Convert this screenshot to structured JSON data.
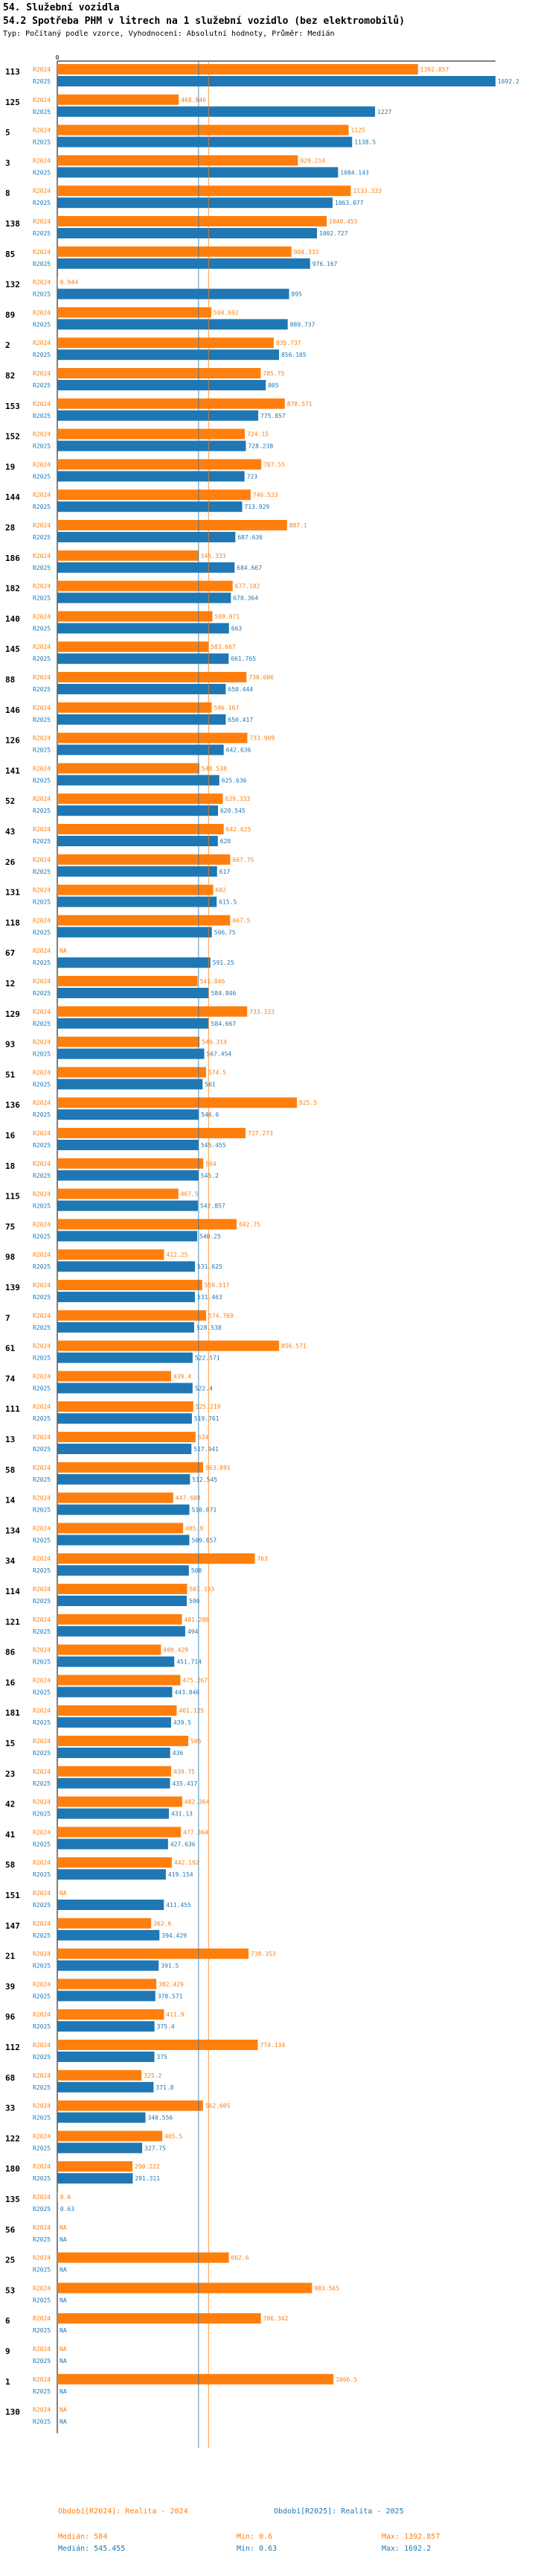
{
  "header": {
    "title": "54. Služební vozidla",
    "subtitle": "54.2 Spotřeba PHM v litrech na 1 služební vozidlo (bez elektromobilů)",
    "meta": "Typ: Počítaný podle vzorce, Vyhodnocení: Absolutní hodnoty, Průměr: Medián"
  },
  "colors": {
    "r2024": "#ff7f0e",
    "r2025": "#1f77b4",
    "median": "#888888"
  },
  "chart_data": {
    "type": "bar",
    "orientation": "horizontal",
    "title": "54.2 Spotřeba PHM v litrech na 1 služební vozidlo (bez elektromobilů)",
    "axis_min_label": "0",
    "xlim": [
      0,
      1692.2
    ],
    "series_names": [
      "R2024",
      "R2025"
    ],
    "medians": {
      "R2024": 584,
      "R2025": 545.455
    },
    "categories": [
      {
        "id": "113",
        "v2024": 1392.857,
        "l2024": "1392.857",
        "v2025": 1692.2,
        "l2025": "1692.2"
      },
      {
        "id": "125",
        "v2024": 468.846,
        "l2024": "468.846",
        "v2025": 1227,
        "l2025": "1227"
      },
      {
        "id": "5",
        "v2024": 1125,
        "l2024": "1125",
        "v2025": 1138.5,
        "l2025": "1138.5"
      },
      {
        "id": "3",
        "v2024": 929.214,
        "l2024": "929.214",
        "v2025": 1084.143,
        "l2025": "1084.143"
      },
      {
        "id": "8",
        "v2024": 1133.333,
        "l2024": "1133.333",
        "v2025": 1063.077,
        "l2025": "1063.077"
      },
      {
        "id": "138",
        "v2024": 1040.455,
        "l2024": "1040.455",
        "v2025": 1002.727,
        "l2025": "1002.727"
      },
      {
        "id": "85",
        "v2024": 904.333,
        "l2024": "904.333",
        "v2025": 976.167,
        "l2025": "976.167"
      },
      {
        "id": "132",
        "v2024": 0.944,
        "l2024": "0.944",
        "v2025": 895,
        "l2025": "895"
      },
      {
        "id": "89",
        "v2024": 594.692,
        "l2024": "594.692",
        "v2025": 889.737,
        "l2025": "889.737"
      },
      {
        "id": "2",
        "v2024": 835.737,
        "l2024": "835.737",
        "v2025": 856.105,
        "l2025": "856.105"
      },
      {
        "id": "82",
        "v2024": 785.75,
        "l2024": "785.75",
        "v2025": 805,
        "l2025": "805"
      },
      {
        "id": "153",
        "v2024": 878.571,
        "l2024": "878.571",
        "v2025": 775.857,
        "l2025": "775.857"
      },
      {
        "id": "152",
        "v2024": 724.15,
        "l2024": "724.15",
        "v2025": 728.238,
        "l2025": "728.238"
      },
      {
        "id": "19",
        "v2024": 787.55,
        "l2024": "787.55",
        "v2025": 723,
        "l2025": "723"
      },
      {
        "id": "144",
        "v2024": 746.533,
        "l2024": "746.533",
        "v2025": 713.929,
        "l2025": "713.929"
      },
      {
        "id": "28",
        "v2024": 887.1,
        "l2024": "887.1",
        "v2025": 687.636,
        "l2025": "687.636"
      },
      {
        "id": "186",
        "v2024": 545.333,
        "l2024": "545.333",
        "v2025": 684.667,
        "l2025": "684.667"
      },
      {
        "id": "182",
        "v2024": 677.182,
        "l2024": "677.182",
        "v2025": 670.364,
        "l2025": "670.364"
      },
      {
        "id": "140",
        "v2024": 599.071,
        "l2024": "599.071",
        "v2025": 663,
        "l2025": "663"
      },
      {
        "id": "145",
        "v2024": 583.667,
        "l2024": "583.667",
        "v2025": 661.765,
        "l2025": "661.765"
      },
      {
        "id": "88",
        "v2024": 730.606,
        "l2024": "730.606",
        "v2025": 650.444,
        "l2025": "650.444"
      },
      {
        "id": "146",
        "v2024": 596.167,
        "l2024": "596.167",
        "v2025": 650.417,
        "l2025": "650.417"
      },
      {
        "id": "126",
        "v2024": 733.909,
        "l2024": "733.909",
        "v2025": 642.636,
        "l2025": "642.636"
      },
      {
        "id": "141",
        "v2024": 548.538,
        "l2024": "548.538",
        "v2025": 625.636,
        "l2025": "625.636"
      },
      {
        "id": "52",
        "v2024": 639.333,
        "l2024": "639.333",
        "v2025": 620.545,
        "l2025": "620.545"
      },
      {
        "id": "43",
        "v2024": 642.625,
        "l2024": "642.625",
        "v2025": 620,
        "l2025": "620"
      },
      {
        "id": "26",
        "v2024": 667.75,
        "l2024": "667.75",
        "v2025": 617,
        "l2025": "617"
      },
      {
        "id": "131",
        "v2024": 602,
        "l2024": "602",
        "v2025": 615.5,
        "l2025": "615.5"
      },
      {
        "id": "118",
        "v2024": 667.5,
        "l2024": "667.5",
        "v2025": 596.75,
        "l2025": "596.75"
      },
      {
        "id": "67",
        "v2024": null,
        "l2024": "NA",
        "v2025": 591.25,
        "l2025": "591.25"
      },
      {
        "id": "12",
        "v2024": 541.846,
        "l2024": "541.846",
        "v2025": 584.846,
        "l2025": "584.846"
      },
      {
        "id": "129",
        "v2024": 733.333,
        "l2024": "733.333",
        "v2025": 584.667,
        "l2025": "584.667"
      },
      {
        "id": "93",
        "v2024": 549.314,
        "l2024": "549.314",
        "v2025": 567.454,
        "l2025": "567.454"
      },
      {
        "id": "51",
        "v2024": 574.5,
        "l2024": "574.5",
        "v2025": 561,
        "l2025": "561"
      },
      {
        "id": "136",
        "v2024": 925.5,
        "l2024": "925.5",
        "v2025": 546.6,
        "l2025": "546.6"
      },
      {
        "id": "16",
        "v2024": 727.273,
        "l2024": "727.273",
        "v2025": 545.455,
        "l2025": "545.455"
      },
      {
        "id": "18",
        "v2024": 564,
        "l2024": "564",
        "v2025": 545.2,
        "l2025": "545.2"
      },
      {
        "id": "115",
        "v2024": 467.5,
        "l2024": "467.5",
        "v2025": 542.857,
        "l2025": "542.857"
      },
      {
        "id": "75",
        "v2024": 692.75,
        "l2024": "692.75",
        "v2025": 540.25,
        "l2025": "540.25"
      },
      {
        "id": "98",
        "v2024": 412.25,
        "l2024": "412.25",
        "v2025": 531.625,
        "l2025": "531.625"
      },
      {
        "id": "139",
        "v2024": 559.517,
        "l2024": "559.517",
        "v2025": 531.463,
        "l2025": "531.463"
      },
      {
        "id": "7",
        "v2024": 574.769,
        "l2024": "574.769",
        "v2025": 528.538,
        "l2025": "528.538"
      },
      {
        "id": "61",
        "v2024": 856.571,
        "l2024": "856.571",
        "v2025": 522.571,
        "l2025": "522.571"
      },
      {
        "id": "74",
        "v2024": 439.4,
        "l2024": "439.4",
        "v2025": 522.4,
        "l2025": "522.4"
      },
      {
        "id": "111",
        "v2024": 525.219,
        "l2024": "525.219",
        "v2025": 519.761,
        "l2025": "519.761"
      },
      {
        "id": "13",
        "v2024": 534,
        "l2024": "534",
        "v2025": 517.941,
        "l2025": "517.941"
      },
      {
        "id": "58",
        "v2024": 563.091,
        "l2024": "563.091",
        "v2025": 512.545,
        "l2025": "512.545"
      },
      {
        "id": "14",
        "v2024": 447.688,
        "l2024": "447.688",
        "v2025": 510.071,
        "l2025": "510.071"
      },
      {
        "id": "134",
        "v2024": 485.9,
        "l2024": "485.9",
        "v2025": 509.857,
        "l2025": "509.857"
      },
      {
        "id": "34",
        "v2024": 763,
        "l2024": "763",
        "v2025": 508,
        "l2025": "508"
      },
      {
        "id": "114",
        "v2024": 501.333,
        "l2024": "501.333",
        "v2025": 500,
        "l2025": "500"
      },
      {
        "id": "121",
        "v2024": 481.286,
        "l2024": "481.286",
        "v2025": 494,
        "l2025": "494"
      },
      {
        "id": "86",
        "v2024": 400.429,
        "l2024": "400.429",
        "v2025": 451.714,
        "l2025": "451.714"
      },
      {
        "id": "16",
        "v2024": 475.267,
        "l2024": "475.267",
        "v2025": 443.846,
        "l2025": "443.846"
      },
      {
        "id": "181",
        "v2024": 461.125,
        "l2024": "461.125",
        "v2025": 439.5,
        "l2025": "439.5"
      },
      {
        "id": "15",
        "v2024": 506,
        "l2024": "506",
        "v2025": 436,
        "l2025": "436"
      },
      {
        "id": "23",
        "v2024": 439.75,
        "l2024": "439.75",
        "v2025": 435.417,
        "l2025": "435.417"
      },
      {
        "id": "42",
        "v2024": 482.364,
        "l2024": "482.364",
        "v2025": 431.13,
        "l2025": "431.13"
      },
      {
        "id": "41",
        "v2024": 477.364,
        "l2024": "477.364",
        "v2025": 427.636,
        "l2025": "427.636"
      },
      {
        "id": "58",
        "v2024": 442.192,
        "l2024": "442.192",
        "v2025": 419.154,
        "l2025": "419.154"
      },
      {
        "id": "151",
        "v2024": null,
        "l2024": "NA",
        "v2025": 411.455,
        "l2025": "411.455"
      },
      {
        "id": "147",
        "v2024": 362.6,
        "l2024": "362.6",
        "v2025": 394.429,
        "l2025": "394.429"
      },
      {
        "id": "21",
        "v2024": 738.353,
        "l2024": "738.353",
        "v2025": 391.5,
        "l2025": "391.5"
      },
      {
        "id": "39",
        "v2024": 382.429,
        "l2024": "382.429",
        "v2025": 378.571,
        "l2025": "378.571"
      },
      {
        "id": "96",
        "v2024": 411.9,
        "l2024": "411.9",
        "v2025": 375.4,
        "l2025": "375.4"
      },
      {
        "id": "112",
        "v2024": 774.134,
        "l2024": "774.134",
        "v2025": 375,
        "l2025": "375"
      },
      {
        "id": "68",
        "v2024": 325.2,
        "l2024": "325.2",
        "v2025": 371.8,
        "l2025": "371.8"
      },
      {
        "id": "33",
        "v2024": 562.605,
        "l2024": "562.605",
        "v2025": 340.556,
        "l2025": "340.556"
      },
      {
        "id": "122",
        "v2024": 405.5,
        "l2024": "405.5",
        "v2025": 327.75,
        "l2025": "327.75"
      },
      {
        "id": "180",
        "v2024": 290.222,
        "l2024": "290.222",
        "v2025": 291.311,
        "l2025": "291.311"
      },
      {
        "id": "135",
        "v2024": 0.6,
        "l2024": "0.6",
        "v2025": 0.63,
        "l2025": "0.63"
      },
      {
        "id": "56",
        "v2024": null,
        "l2024": "NA",
        "v2025": null,
        "l2025": "NA"
      },
      {
        "id": "25",
        "v2024": 662.6,
        "l2024": "662.6",
        "v2025": null,
        "l2025": "NA"
      },
      {
        "id": "53",
        "v2024": 983.565,
        "l2024": "983.565",
        "v2025": null,
        "l2025": "NA"
      },
      {
        "id": "6",
        "v2024": 786.342,
        "l2024": "786.342",
        "v2025": null,
        "l2025": "NA"
      },
      {
        "id": "9",
        "v2024": null,
        "l2024": "NA",
        "v2025": null,
        "l2025": "NA"
      },
      {
        "id": "1",
        "v2024": 1066.5,
        "l2024": "1066.5",
        "v2025": null,
        "l2025": "NA"
      },
      {
        "id": "130",
        "v2024": null,
        "l2024": "NA",
        "v2025": null,
        "l2025": "NA"
      }
    ]
  },
  "footer": {
    "legend_2024": "Období[R2024]: Realita - 2024",
    "legend_2025": "Období[R2025]: Realita - 2025",
    "median_2024": "Medián: 584",
    "median_2025": "Medián: 545.455",
    "min_2024": "Min: 0.6",
    "min_2025": "Min: 0.63",
    "max_2024": "Max: 1392.857",
    "max_2025": "Max: 1692.2"
  }
}
